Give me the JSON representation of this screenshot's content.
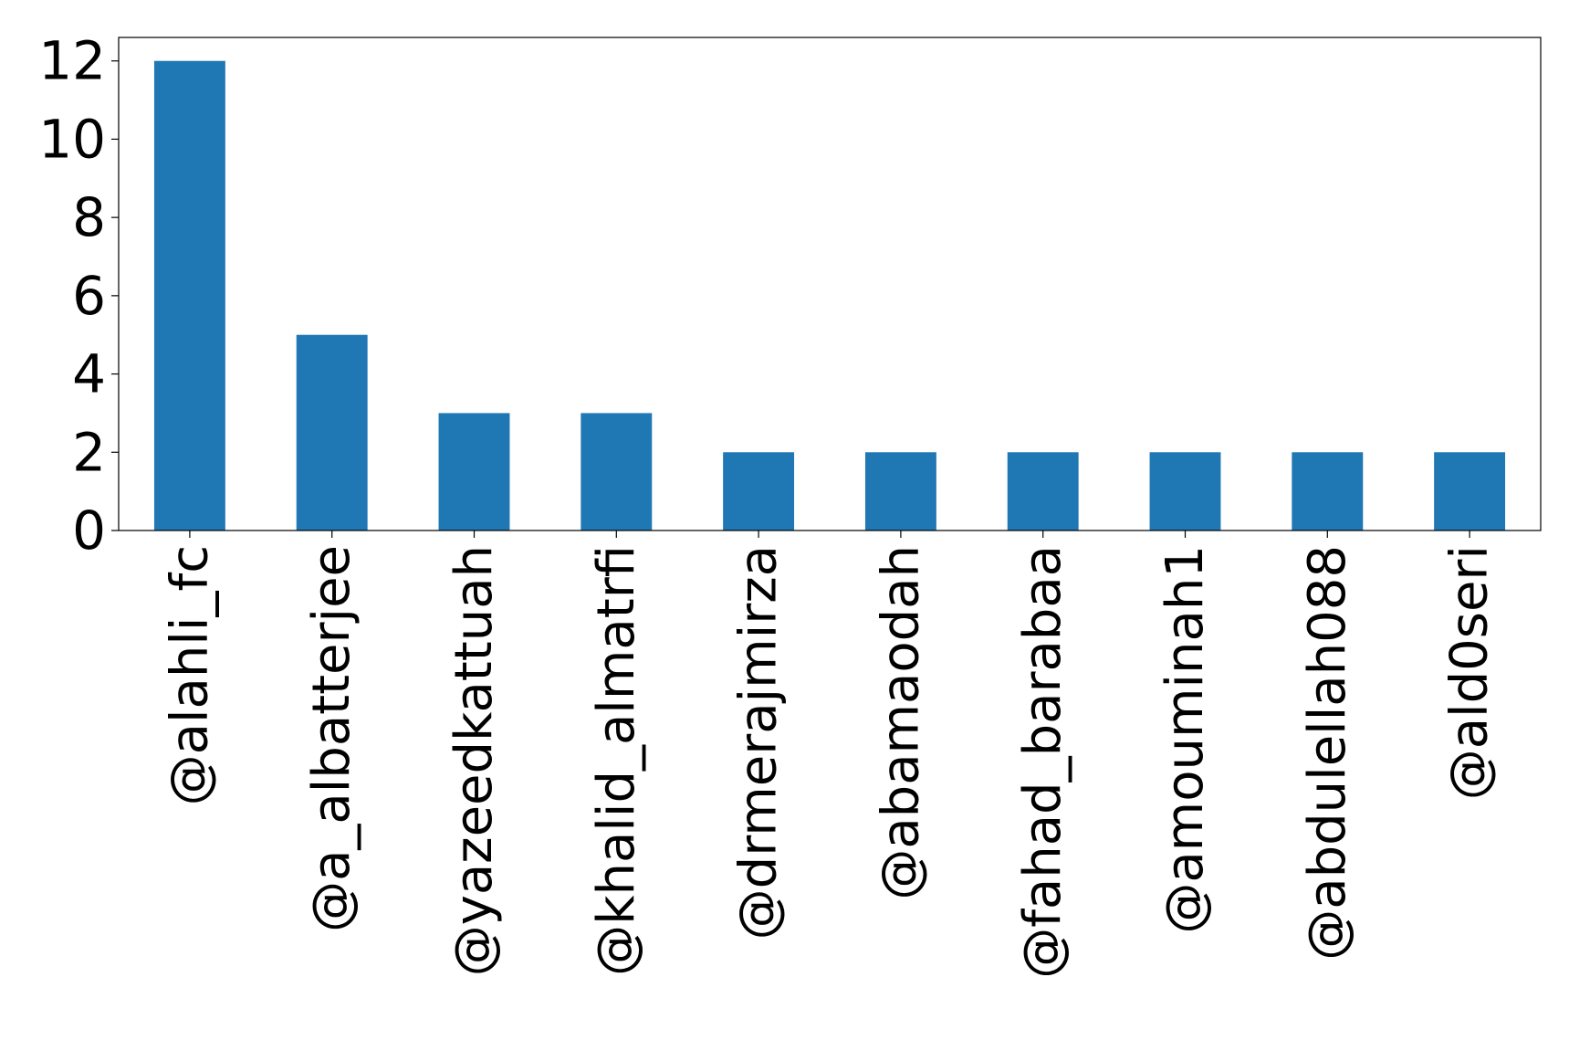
{
  "chart_data": {
    "type": "bar",
    "title": "",
    "xlabel": "",
    "ylabel": "",
    "categories": [
      "@alahli_fc",
      "@a_albatterjee",
      "@yazeedkattuah",
      "@khalid_almatrfi",
      "@drmerajmirza",
      "@abamaodah",
      "@fahad_barabaa",
      "@amouminah1",
      "@abdulellah088",
      "@ald0seri"
    ],
    "values": [
      12,
      5,
      3,
      3,
      2,
      2,
      2,
      2,
      2,
      2
    ],
    "ylim": [
      0,
      12.6
    ],
    "yticks": [
      0,
      2,
      4,
      6,
      8,
      10,
      12
    ],
    "bar_color": "#1f77b4",
    "grid": false,
    "legend": "none"
  }
}
